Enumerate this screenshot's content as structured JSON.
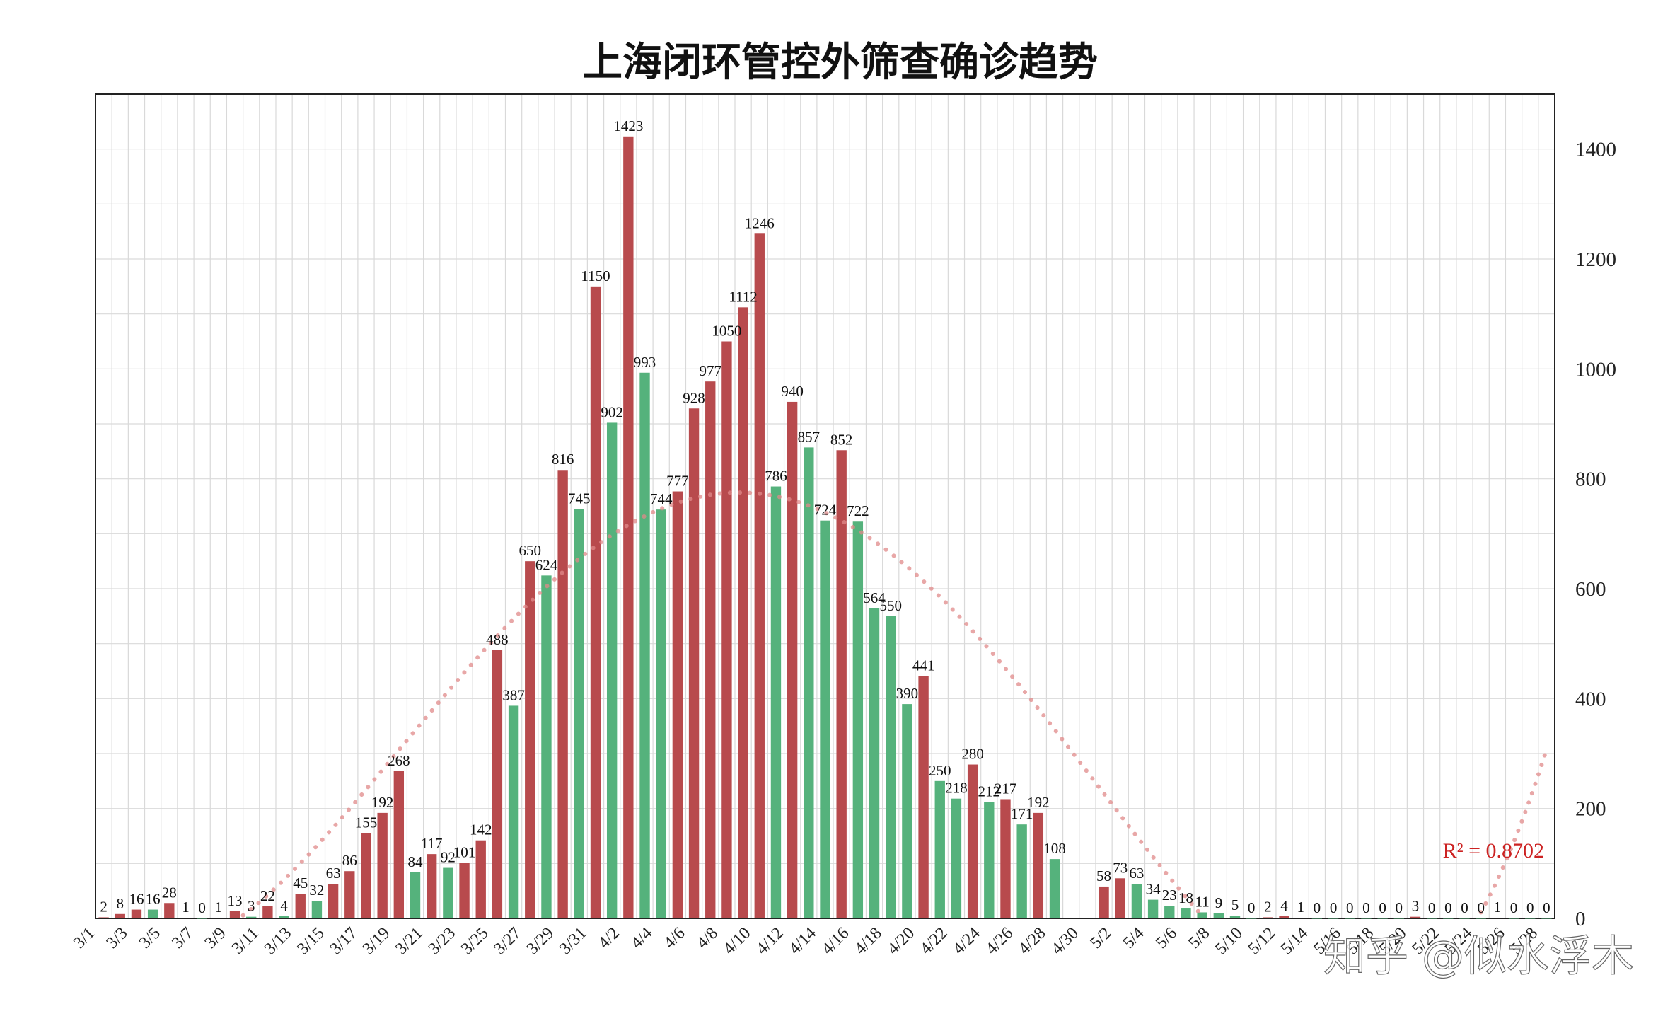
{
  "chart_data": {
    "type": "bar",
    "title": "上海闭环管控外筛查确诊趋势",
    "ylim": [
      0,
      1500
    ],
    "yticks": [
      0,
      200,
      400,
      600,
      800,
      1000,
      1200,
      1400
    ],
    "y_axis_side": "right",
    "grid": true,
    "x_tick_every": 2,
    "colors": {
      "up": "#b84a4d",
      "down": "#55b27c",
      "trend": "#e08a8a",
      "r2": "#cc2222"
    },
    "categories": [
      "3/1",
      "3/2",
      "3/3",
      "3/4",
      "3/5",
      "3/6",
      "3/7",
      "3/8",
      "3/9",
      "3/10",
      "3/11",
      "3/12",
      "3/13",
      "3/14",
      "3/15",
      "3/16",
      "3/17",
      "3/18",
      "3/19",
      "3/20",
      "3/21",
      "3/22",
      "3/23",
      "3/24",
      "3/25",
      "3/26",
      "3/27",
      "3/28",
      "3/29",
      "3/30",
      "3/31",
      "4/1",
      "4/2",
      "4/3",
      "4/4",
      "4/5",
      "4/6",
      "4/7",
      "4/8",
      "4/9",
      "4/10",
      "4/11",
      "4/12",
      "4/13",
      "4/14",
      "4/15",
      "4/16",
      "4/17",
      "4/18",
      "4/19",
      "4/20",
      "4/21",
      "4/22",
      "4/23",
      "4/24",
      "4/25",
      "4/26",
      "4/27",
      "4/28",
      "4/29",
      "4/30",
      "5/1",
      "5/2",
      "5/3",
      "5/4",
      "5/5",
      "5/6",
      "5/7",
      "5/8",
      "5/9",
      "5/10",
      "5/11",
      "5/12",
      "5/13",
      "5/14",
      "5/15",
      "5/16",
      "5/17",
      "5/18",
      "5/19",
      "5/20",
      "5/21",
      "5/22",
      "5/23",
      "5/24",
      "5/25",
      "5/26",
      "5/27",
      "5/28"
    ],
    "values": [
      2,
      8,
      16,
      16,
      28,
      1,
      0,
      1,
      13,
      3,
      22,
      4,
      45,
      32,
      63,
      86,
      155,
      192,
      268,
      84,
      117,
      92,
      101,
      142,
      488,
      387,
      650,
      624,
      816,
      745,
      1150,
      902,
      1423,
      993,
      744,
      777,
      928,
      977,
      1050,
      1112,
      1246,
      786,
      940,
      857,
      724,
      852,
      722,
      564,
      550,
      390,
      441,
      250,
      218,
      280,
      212,
      217,
      171,
      192,
      108,
      null,
      null,
      58,
      73,
      63,
      34,
      23,
      18,
      11,
      9,
      5,
      0,
      2,
      4,
      1,
      0,
      0,
      0,
      0,
      0,
      0,
      3,
      0,
      0,
      0,
      0,
      1,
      0,
      0,
      0
    ],
    "trendline": {
      "type": "polynomial",
      "r2_label": "R² = 0.8702"
    }
  },
  "watermark": "知乎 @似水浮木"
}
